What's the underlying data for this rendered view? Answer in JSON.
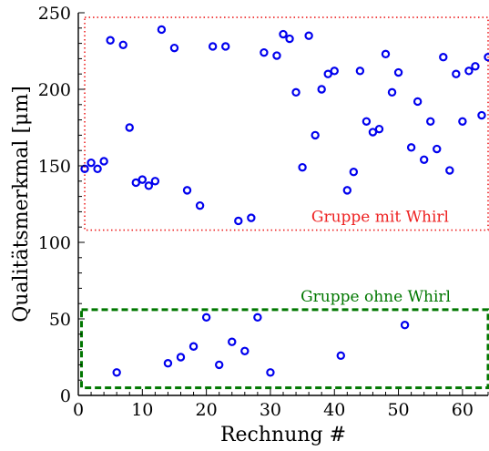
{
  "chart_data": {
    "type": "scatter",
    "xlabel": "Rechnung #",
    "ylabel": "Qualitätsmerkmal [μm]",
    "xlim": [
      0,
      64
    ],
    "ylim": [
      0,
      250
    ],
    "xticks": [
      0,
      10,
      20,
      30,
      40,
      50,
      60
    ],
    "yticks": [
      0,
      50,
      100,
      150,
      200,
      250
    ],
    "grid": false,
    "marker_color": "#0000ee",
    "points": [
      [
        1,
        148
      ],
      [
        2,
        152
      ],
      [
        3,
        148
      ],
      [
        4,
        153
      ],
      [
        5,
        232
      ],
      [
        6,
        15
      ],
      [
        7,
        229
      ],
      [
        8,
        175
      ],
      [
        9,
        139
      ],
      [
        10,
        141
      ],
      [
        11,
        137
      ],
      [
        12,
        140
      ],
      [
        13,
        239
      ],
      [
        14,
        21
      ],
      [
        15,
        227
      ],
      [
        16,
        25
      ],
      [
        17,
        134
      ],
      [
        18,
        32
      ],
      [
        19,
        124
      ],
      [
        20,
        51
      ],
      [
        21,
        228
      ],
      [
        22,
        20
      ],
      [
        23,
        228
      ],
      [
        24,
        35
      ],
      [
        25,
        114
      ],
      [
        26,
        29
      ],
      [
        27,
        116
      ],
      [
        28,
        51
      ],
      [
        29,
        224
      ],
      [
        30,
        15
      ],
      [
        31,
        222
      ],
      [
        32,
        236
      ],
      [
        33,
        233
      ],
      [
        34,
        198
      ],
      [
        35,
        149
      ],
      [
        36,
        235
      ],
      [
        37,
        170
      ],
      [
        38,
        200
      ],
      [
        39,
        210
      ],
      [
        40,
        212
      ],
      [
        41,
        26
      ],
      [
        42,
        134
      ],
      [
        43,
        146
      ],
      [
        44,
        212
      ],
      [
        45,
        179
      ],
      [
        46,
        172
      ],
      [
        47,
        174
      ],
      [
        48,
        223
      ],
      [
        49,
        198
      ],
      [
        50,
        211
      ],
      [
        51,
        46
      ],
      [
        52,
        162
      ],
      [
        53,
        192
      ],
      [
        54,
        154
      ],
      [
        55,
        179
      ],
      [
        56,
        161
      ],
      [
        57,
        221
      ],
      [
        58,
        147
      ],
      [
        59,
        210
      ],
      [
        60,
        179
      ],
      [
        61,
        212
      ],
      [
        62,
        215
      ],
      [
        63,
        183
      ],
      [
        64,
        221
      ]
    ],
    "regions": [
      {
        "label": "Gruppe mit Whirl",
        "color": "#ee2222",
        "style": "dotted",
        "x": [
          1,
          64
        ],
        "y": [
          108,
          247
        ]
      },
      {
        "label": "Gruppe ohne Whirl",
        "color": "#007700",
        "style": "dashed",
        "x": [
          0.5,
          64
        ],
        "y": [
          5,
          56
        ]
      }
    ]
  }
}
